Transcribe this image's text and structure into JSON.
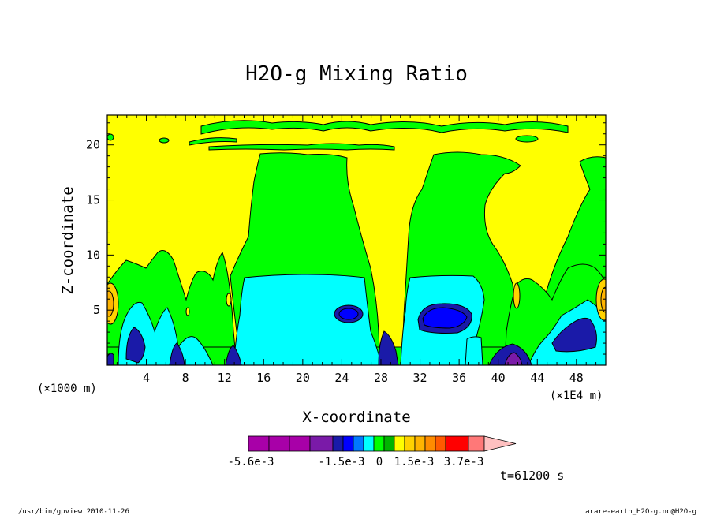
{
  "chart_data": {
    "type": "heatmap",
    "title": "H2O-g Mixing Ratio",
    "xlabel": "X-coordinate",
    "ylabel": "Z-coordinate",
    "x_unit": "(×1000 m)",
    "x_multiplier": "(×1E4 m)",
    "x_ticks": [
      4,
      8,
      12,
      16,
      20,
      24,
      28,
      32,
      36,
      40,
      44,
      48
    ],
    "y_ticks": [
      5,
      10,
      15,
      20
    ],
    "xlim": [
      0,
      51
    ],
    "ylim": [
      0,
      22.7
    ],
    "colorbar": {
      "colors": [
        "#a800a8",
        "#a800a8",
        "#a800a8",
        "#7a1aa8",
        "#1a1aa8",
        "#0000ff",
        "#0078ff",
        "#00ffff",
        "#00ff00",
        "#00b400",
        "#ffff00",
        "#ffd200",
        "#ffb400",
        "#ff8c00",
        "#ff5a00",
        "#ff0000",
        "#ff7878",
        "#ffc0c0"
      ],
      "tick_labels": [
        "-5.6e-3",
        "-1.5e-3",
        "0",
        "1.5e-3",
        "3.7e-3"
      ]
    },
    "time_label": "t=61200 s",
    "regions": [
      {
        "level": "yellow",
        "color": "#ffff00"
      },
      {
        "level": "green",
        "color": "#00ff00"
      },
      {
        "level": "cyan",
        "color": "#00ffff"
      },
      {
        "level": "blue",
        "color": "#0000ff"
      },
      {
        "level": "navy",
        "color": "#1a1aa8"
      },
      {
        "level": "orange",
        "color": "#ffb400"
      },
      {
        "level": "purple",
        "color": "#7a1aa8"
      }
    ]
  },
  "footer": {
    "left": "/usr/bin/gpview  2010-11-26",
    "right": "arare-earth_H2O-g.nc@H2O-g"
  }
}
